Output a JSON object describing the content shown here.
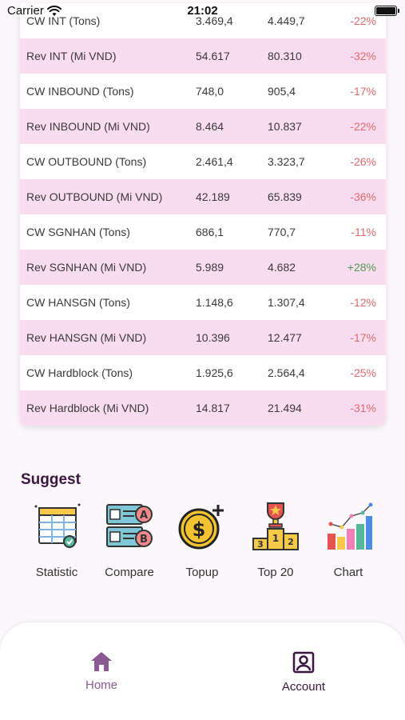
{
  "status_bar": {
    "carrier": "Carrier",
    "time": "21:02"
  },
  "table": {
    "rows": [
      {
        "name": "CW INT (Tons)",
        "v1": "3.469,4",
        "v2": "4.449,7",
        "change": "-22%",
        "trend": "neg"
      },
      {
        "name": "Rev INT (Mi VND)",
        "v1": "54.617",
        "v2": "80.310",
        "change": "-32%",
        "trend": "neg"
      },
      {
        "name": "CW INBOUND (Tons)",
        "v1": "748,0",
        "v2": "905,4",
        "change": "-17%",
        "trend": "neg"
      },
      {
        "name": "Rev INBOUND (Mi VND)",
        "v1": "8.464",
        "v2": "10.837",
        "change": "-22%",
        "trend": "neg"
      },
      {
        "name": "CW OUTBOUND (Tons)",
        "v1": "2.461,4",
        "v2": "3.323,7",
        "change": "-26%",
        "trend": "neg"
      },
      {
        "name": "Rev OUTBOUND (Mi VND)",
        "v1": "42.189",
        "v2": "65.839",
        "change": "-36%",
        "trend": "neg"
      },
      {
        "name": "CW SGNHAN (Tons)",
        "v1": "686,1",
        "v2": "770,7",
        "change": "-11%",
        "trend": "neg"
      },
      {
        "name": "Rev SGNHAN (Mi VND)",
        "v1": "5.989",
        "v2": "4.682",
        "change": "+28%",
        "trend": "pos"
      },
      {
        "name": "CW HANSGN (Tons)",
        "v1": "1.148,6",
        "v2": "1.307,4",
        "change": "-12%",
        "trend": "neg"
      },
      {
        "name": "Rev HANSGN (Mi VND)",
        "v1": "10.396",
        "v2": "12.477",
        "change": "-17%",
        "trend": "neg"
      },
      {
        "name": "CW Hardblock (Tons)",
        "v1": "1.925,6",
        "v2": "2.564,4",
        "change": "-25%",
        "trend": "neg"
      },
      {
        "name": "Rev Hardblock (Mi VND)",
        "v1": "14.817",
        "v2": "21.494",
        "change": "-31%",
        "trend": "neg"
      }
    ]
  },
  "suggest": {
    "title": "Suggest",
    "items": [
      {
        "label": "Statistic",
        "icon": "statistic-icon"
      },
      {
        "label": "Compare",
        "icon": "compare-icon"
      },
      {
        "label": "Topup",
        "icon": "topup-icon"
      },
      {
        "label": "Top 20",
        "icon": "top20-icon"
      },
      {
        "label": "Chart",
        "icon": "chart-icon"
      }
    ]
  },
  "bottom_nav": {
    "home_label": "Home",
    "account_label": "Account"
  },
  "colors": {
    "row_alt": "#f9dcef",
    "negative": "#e06a6a",
    "positive": "#4f9a4f",
    "accent": "#8b5a93",
    "title": "#3a1640"
  }
}
